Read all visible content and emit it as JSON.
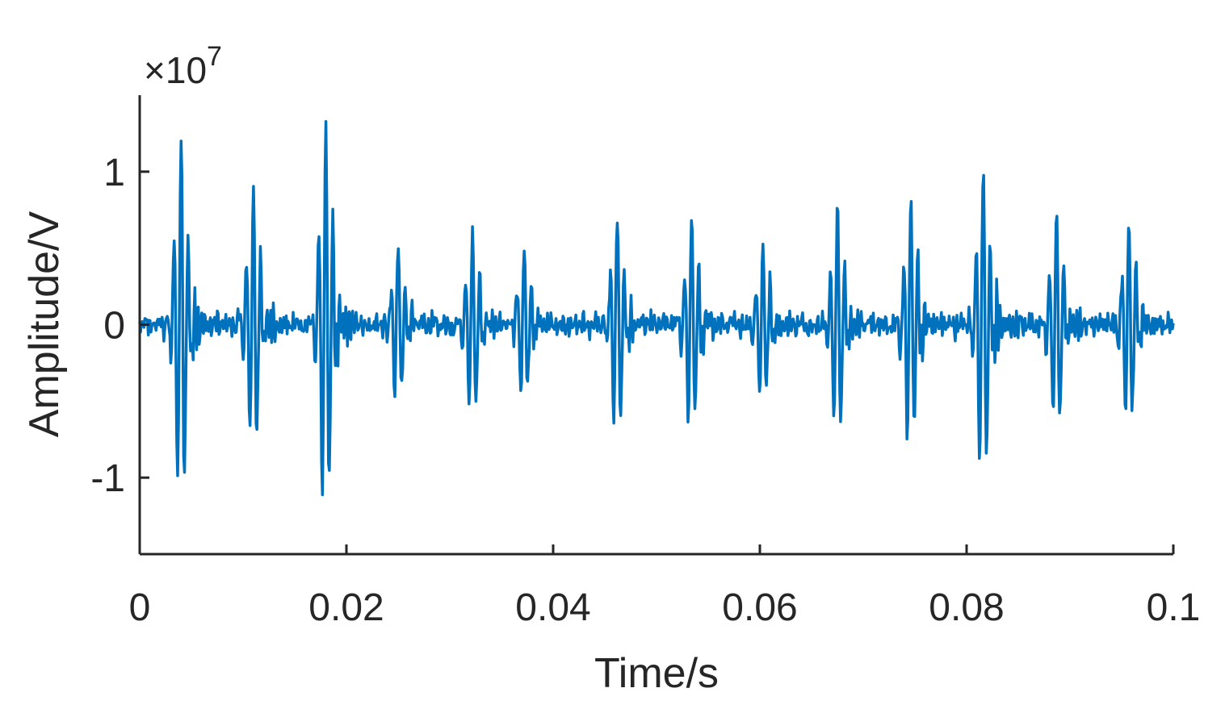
{
  "chart_data": {
    "type": "line",
    "xlabel": "Time/s",
    "ylabel": "Amplitude/V",
    "y_exponent_label": "×10",
    "y_exponent_power": "7",
    "y_scale": 10000000,
    "xlim": [
      0,
      0.1
    ],
    "ylim": [
      -1.5,
      1.5
    ],
    "x_ticks": [
      0,
      0.02,
      0.04,
      0.06,
      0.08,
      0.1
    ],
    "x_tick_labels": [
      "0",
      "0.02",
      "0.04",
      "0.06",
      "0.08",
      "0.1"
    ],
    "y_ticks": [
      -1,
      0,
      1
    ],
    "y_tick_labels": [
      "-1",
      "0",
      "1"
    ],
    "grid": false,
    "box": false,
    "color": "#0072BD",
    "signal": {
      "x_start": 0,
      "x_end": 0.1,
      "n_points": 1200,
      "impulses": [
        {
          "t": 0.004,
          "amp": 1.2
        },
        {
          "t": 0.011,
          "amp": 0.88
        },
        {
          "t": 0.018,
          "amp": 1.32
        },
        {
          "t": 0.025,
          "amp": 0.52
        },
        {
          "t": 0.0322,
          "amp": 0.62
        },
        {
          "t": 0.0372,
          "amp": 0.5
        },
        {
          "t": 0.0462,
          "amp": 0.72
        },
        {
          "t": 0.0534,
          "amp": 0.72
        },
        {
          "t": 0.0603,
          "amp": 0.52
        },
        {
          "t": 0.0675,
          "amp": 0.75
        },
        {
          "t": 0.0746,
          "amp": 0.84
        },
        {
          "t": 0.0816,
          "amp": 1.05
        },
        {
          "t": 0.0887,
          "amp": 0.72
        },
        {
          "t": 0.0957,
          "amp": 0.72
        }
      ]
    }
  }
}
